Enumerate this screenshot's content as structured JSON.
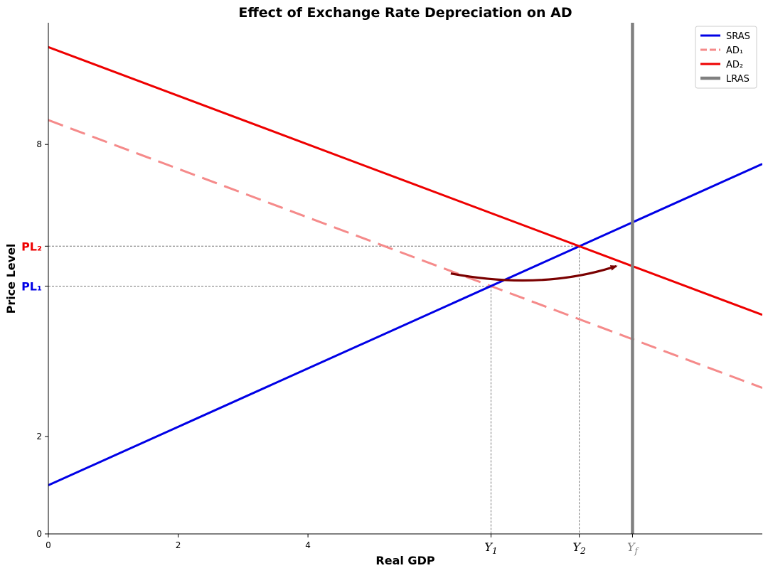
{
  "chart_data": {
    "type": "line",
    "title": "Effect of Exchange Rate Depreciation on AD",
    "xlabel": "Real GDP",
    "ylabel": "Price Level",
    "xlim": [
      0,
      11
    ],
    "ylim": [
      0,
      10.5
    ],
    "x_ticks": [
      0,
      2,
      4
    ],
    "y_ticks": [
      0,
      2,
      8
    ],
    "series": [
      {
        "name": "SRAS",
        "color": "#0000e6",
        "style": "solid",
        "x": [
          0,
          11
        ],
        "y": [
          1.0,
          7.6
        ]
      },
      {
        "name": "AD₁",
        "color": "#f58a8a",
        "style": "dashed",
        "x": [
          0,
          11
        ],
        "y": [
          8.5,
          3.0
        ]
      },
      {
        "name": "AD₂",
        "color": "#ee0000",
        "style": "solid",
        "x": [
          0,
          11
        ],
        "y": [
          10.0,
          4.5
        ]
      },
      {
        "name": "LRAS",
        "color": "#808080",
        "style": "vertical",
        "x": [
          9.0,
          9.0
        ],
        "y": [
          0,
          10.5
        ]
      }
    ],
    "equilibria": [
      {
        "x_label": "Y",
        "x_sub": "1",
        "x": 6.82,
        "y": 5.09,
        "y_label": "PL₁",
        "color": "#0000e6"
      },
      {
        "x_label": "Y",
        "x_sub": "2",
        "x": 8.18,
        "y": 5.91,
        "y_label": "PL₂",
        "color": "#ee0000"
      }
    ],
    "full_employment": {
      "x_label": "Y",
      "x_sub": "f",
      "x": 9.0,
      "color": "#808080"
    },
    "shift_arrow": {
      "from": [
        6.2,
        5.35
      ],
      "control": [
        7.6,
        5.0
      ],
      "to": [
        8.75,
        5.5
      ],
      "color": "#7a0000"
    },
    "legend_position": "top-right",
    "grid": false
  }
}
